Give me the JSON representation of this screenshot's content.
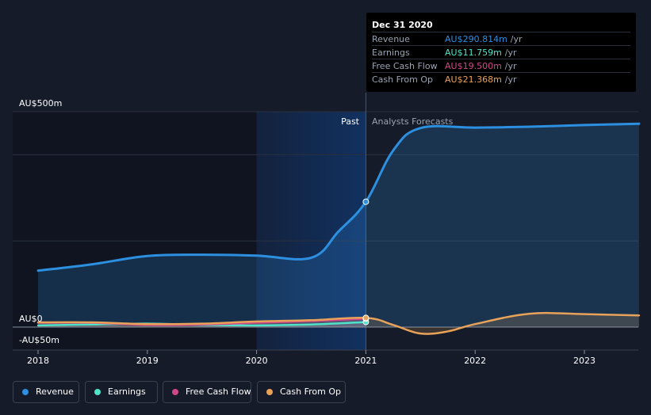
{
  "chart_data": {
    "type": "area",
    "currency_labels": {
      "top": "AU$500m",
      "zero": "AU$0",
      "bottom": "-AU$50m"
    },
    "ylim": [
      -50,
      500
    ],
    "xlim": [
      2018.0,
      2023.5
    ],
    "x_ticks": [
      "2018",
      "2019",
      "2020",
      "2021",
      "2022",
      "2023"
    ],
    "x_tick_values": [
      2018,
      2019,
      2020,
      2021,
      2022,
      2023
    ],
    "grid": true,
    "past_label": "Past",
    "forecast_label": "Analysts Forecasts",
    "divider_x": 2021.0,
    "highlight_start_x": 2020.0,
    "series": [
      {
        "name": "Revenue",
        "color": "#2d8fe0",
        "x": [
          2018.0,
          2018.5,
          2019.0,
          2019.5,
          2020.0,
          2020.5,
          2020.75,
          2021.0,
          2021.25,
          2021.5,
          2022.0,
          2022.5,
          2023.0,
          2023.5
        ],
        "values": [
          131,
          146,
          165,
          168,
          166,
          161,
          222,
          291,
          410,
          462,
          463,
          465,
          469,
          472
        ]
      },
      {
        "name": "Earnings",
        "color": "#4ee3c9",
        "x": [
          2018.0,
          2018.5,
          2019.0,
          2019.5,
          2020.0,
          2020.5,
          2021.0
        ],
        "values": [
          4,
          6,
          8,
          5,
          4,
          6,
          11.759
        ]
      },
      {
        "name": "Free Cash Flow",
        "color": "#d1488a",
        "x": [
          2018.0,
          2018.5,
          2019.0,
          2019.5,
          2020.0,
          2020.5,
          2021.0
        ],
        "values": [
          10,
          10,
          5,
          6,
          10,
          14,
          19.5
        ]
      },
      {
        "name": "Cash From Op",
        "color": "#e8a25a",
        "x": [
          2018.0,
          2018.5,
          2019.0,
          2019.5,
          2020.0,
          2020.5,
          2021.0,
          2021.25,
          2021.5,
          2021.75,
          2022.0,
          2022.5,
          2023.0,
          2023.5
        ],
        "values": [
          11,
          11,
          7,
          8,
          13,
          16,
          21.368,
          5,
          -15,
          -10,
          7,
          31,
          30,
          27
        ]
      }
    ]
  },
  "tooltip": {
    "date": "Dec 31 2020",
    "unit": "/yr",
    "rows": [
      {
        "name": "Revenue",
        "value": "AU$290.814m",
        "color": "#2d8fe0"
      },
      {
        "name": "Earnings",
        "value": "AU$11.759m",
        "color": "#4ee3c9"
      },
      {
        "name": "Free Cash Flow",
        "value": "AU$19.500m",
        "color": "#d1488a"
      },
      {
        "name": "Cash From Op",
        "value": "AU$21.368m",
        "color": "#e8a25a"
      }
    ]
  },
  "legend": [
    {
      "label": "Revenue",
      "color": "#2d8fe0"
    },
    {
      "label": "Earnings",
      "color": "#4ee3c9"
    },
    {
      "label": "Free Cash Flow",
      "color": "#d1488a"
    },
    {
      "label": "Cash From Op",
      "color": "#e8a25a"
    }
  ],
  "colors": {
    "background": "#151b28",
    "past_area": "#0f1420",
    "highlight_band": "#13284a"
  }
}
